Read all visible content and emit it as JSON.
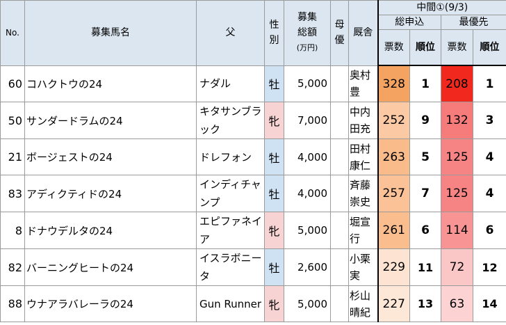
{
  "header": {
    "no": "No.",
    "horse_name": "募集馬名",
    "sire": "父",
    "sex": "性別",
    "total_amount": "募集総額",
    "total_amount_unit": "(万円)",
    "dam_priority": "母優",
    "stable": "厩舎",
    "interim": "中間①(9/3)",
    "total_applications": "総申込",
    "top_priority": "最優先",
    "votes": "票数",
    "rank": "順位"
  },
  "colors": {
    "male": "#cfe2f3",
    "female": "#f8d3d3",
    "header": "#dce6f1"
  },
  "rows": [
    {
      "no": "60",
      "name": "コハクトウの24",
      "sire": "ナダル",
      "sex": "牡",
      "sex_color": "#cfe2f3",
      "amount": "5,000",
      "trainer": "奥村豊",
      "total_votes": "328",
      "total_rank": "1",
      "total_bg": "#f4a460",
      "prio_votes": "208",
      "prio_rank": "1",
      "prio_bg": "#f0281e"
    },
    {
      "no": "50",
      "name": "サンダードラムの24",
      "sire": "キタサンブラック",
      "sex": "牝",
      "sex_color": "#f8d3d3",
      "amount": "7,000",
      "trainer": "中内田充",
      "total_votes": "252",
      "total_rank": "9",
      "total_bg": "#fbc9a4",
      "prio_votes": "132",
      "prio_rank": "3",
      "prio_bg": "#f67c7c"
    },
    {
      "no": "21",
      "name": "ボージェストの24",
      "sire": "ドレフォン",
      "sex": "牡",
      "sex_color": "#cfe2f3",
      "amount": "4,000",
      "trainer": "田村康仁",
      "total_votes": "263",
      "total_rank": "5",
      "total_bg": "#fabb8a",
      "prio_votes": "125",
      "prio_rank": "4",
      "prio_bg": "#f78484"
    },
    {
      "no": "83",
      "name": "アディクティドの24",
      "sire": "インディチャンプ",
      "sex": "牡",
      "sex_color": "#cfe2f3",
      "amount": "4,000",
      "trainer": "斉藤崇史",
      "total_votes": "257",
      "total_rank": "7",
      "total_bg": "#fbc298",
      "prio_votes": "125",
      "prio_rank": "4",
      "prio_bg": "#f78484"
    },
    {
      "no": "8",
      "name": "ドナウデルタの24",
      "sire": "エピファネイア",
      "sex": "牝",
      "sex_color": "#f8d3d3",
      "amount": "5,000",
      "trainer": "堀宣行",
      "total_votes": "261",
      "total_rank": "6",
      "total_bg": "#fabd8d",
      "prio_votes": "114",
      "prio_rank": "6",
      "prio_bg": "#f89494"
    },
    {
      "no": "82",
      "name": "バーニングヒートの24",
      "sire": "イスラボニータ",
      "sex": "牡",
      "sex_color": "#cfe2f3",
      "amount": "2,600",
      "trainer": "小栗実",
      "total_votes": "229",
      "total_rank": "11",
      "total_bg": "#fde4d2",
      "prio_votes": "72",
      "prio_rank": "12",
      "prio_bg": "#fbc6c6"
    },
    {
      "no": "88",
      "name": "ウナアラバレーラの24",
      "sire": "Gun Runner",
      "sex": "牝",
      "sex_color": "#f8d3d3",
      "amount": "5,000",
      "trainer": "杉山晴紀",
      "total_votes": "227",
      "total_rank": "13",
      "total_bg": "#fde7d7",
      "prio_votes": "63",
      "prio_rank": "14",
      "prio_bg": "#fcd2d2"
    }
  ]
}
